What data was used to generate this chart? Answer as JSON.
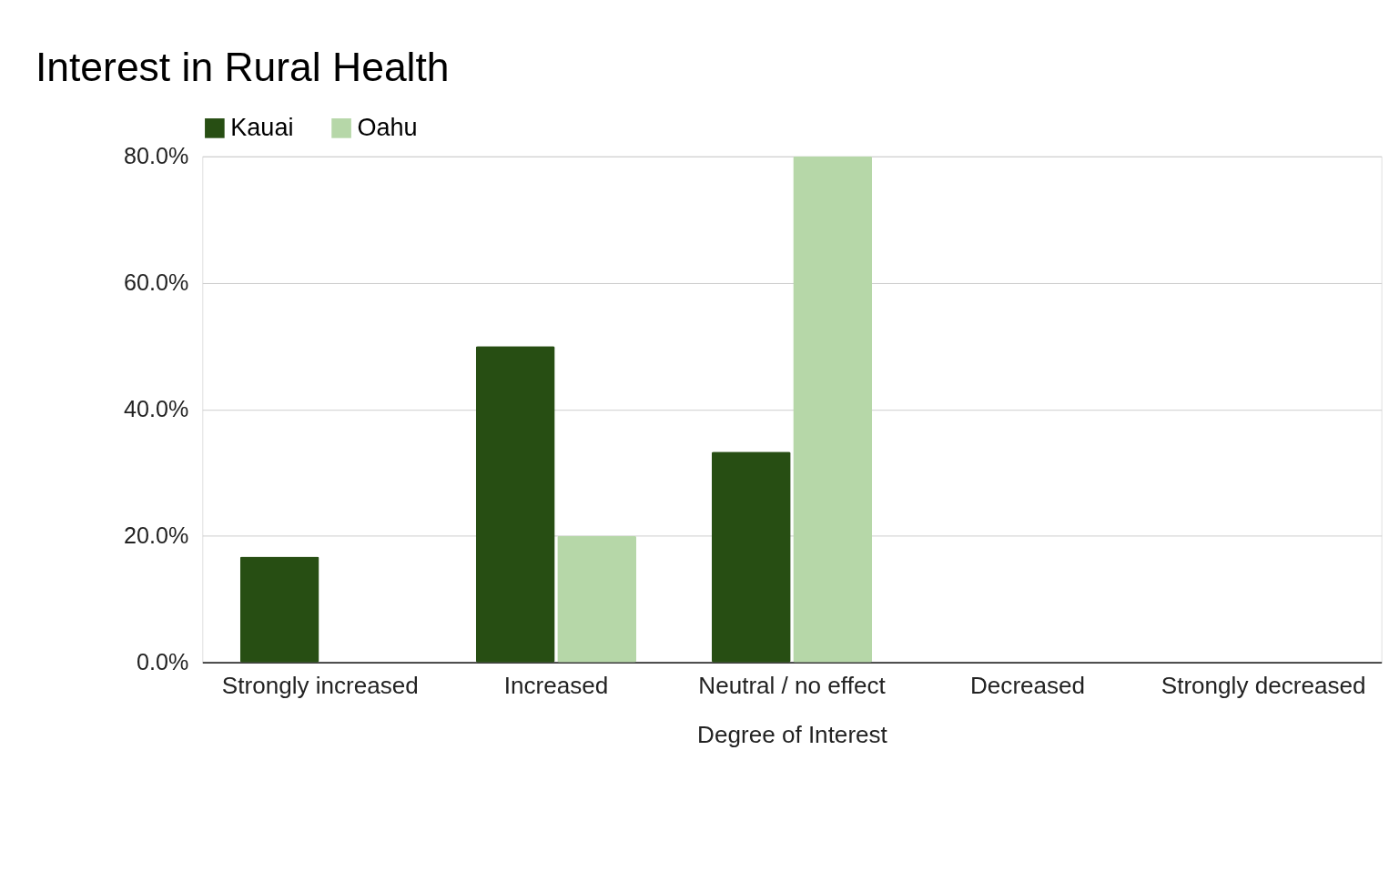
{
  "chart_data": {
    "type": "bar",
    "title": "Interest in Rural Health",
    "xlabel": "Degree of Interest",
    "categories": [
      "Strongly increased",
      "Increased",
      "Neutral / no effect",
      "Decreased",
      "Strongly decreased"
    ],
    "series": [
      {
        "name": "Kauai",
        "color": "#274e13",
        "values": [
          16.7,
          50,
          33.3,
          0,
          0
        ]
      },
      {
        "name": "Oahu",
        "color": "#b6d7a8",
        "values": [
          0,
          20,
          80,
          0,
          0
        ]
      }
    ],
    "ylim": [
      0,
      80
    ],
    "yticks": [
      {
        "value": 0,
        "label": "0.0%"
      },
      {
        "value": 20,
        "label": "20.0%"
      },
      {
        "value": 40,
        "label": "40.0%"
      },
      {
        "value": 60,
        "label": "60.0%"
      },
      {
        "value": 80,
        "label": "80.0%"
      }
    ],
    "grid": "y",
    "legend": "top"
  }
}
